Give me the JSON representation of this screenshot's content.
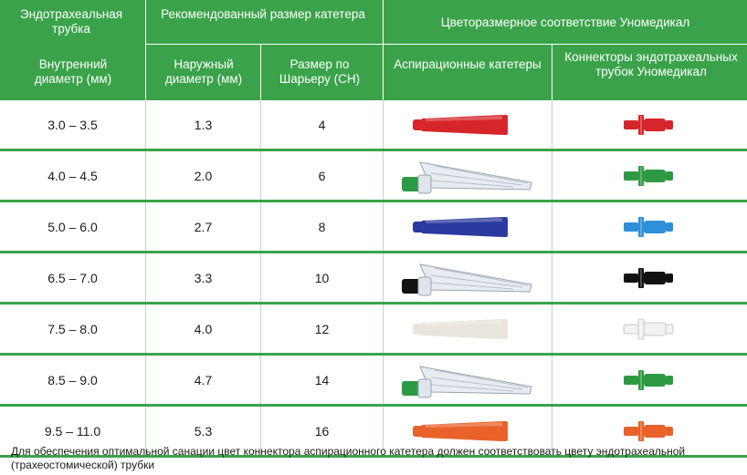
{
  "header": {
    "et_tube_title": "Эндотрахеальная трубка",
    "recommended_title": "Рекомендованный размер катетера",
    "color_title": "Цветоразмерное соответствие Уномедикал",
    "col_inner": "Внутренний диаметр (мм)",
    "col_outer": "Наружный диаметр (мм)",
    "col_ch": "Размер по Шарьеру (CH)",
    "col_suction": "Аспирационные катетеры",
    "col_connectors": "Коннекторы эндотрахеальных трубок Уномедикал"
  },
  "rows": [
    {
      "inner": "3.0 – 3.5",
      "outer": "1.3",
      "ch": "4",
      "color": "#d6262b",
      "style": "solid"
    },
    {
      "inner": "4.0 – 4.5",
      "outer": "2.0",
      "ch": "6",
      "color": "#2d9a43",
      "style": "clear"
    },
    {
      "inner": "5.0 – 6.0",
      "outer": "2.7",
      "ch": "8",
      "color": "#2a3a9e",
      "style": "solid"
    },
    {
      "inner": "6.5 – 7.0",
      "outer": "3.3",
      "ch": "10",
      "color": "#111111",
      "style": "clear"
    },
    {
      "inner": "7.5 – 8.0",
      "outer": "4.0",
      "ch": "12",
      "color": "#e9e5dc",
      "style": "solid"
    },
    {
      "inner": "8.5 – 9.0",
      "outer": "4.7",
      "ch": "14",
      "color": "#2d9a43",
      "style": "clear"
    },
    {
      "inner": "9.5 – 11.0",
      "outer": "5.3",
      "ch": "16",
      "color": "#e8622a",
      "style": "solid"
    }
  ],
  "connector_colors": [
    "#d6262b",
    "#2d9a43",
    "#2f8fd8",
    "#111111",
    "#f2f2f2",
    "#2d9a43",
    "#e8622a"
  ],
  "footnote": "Для обеспечения оптимальной санации цвет коннектора аспирационного катетера должен соответствовать цвету эндотрахеальной (трахеостомической) трубки"
}
